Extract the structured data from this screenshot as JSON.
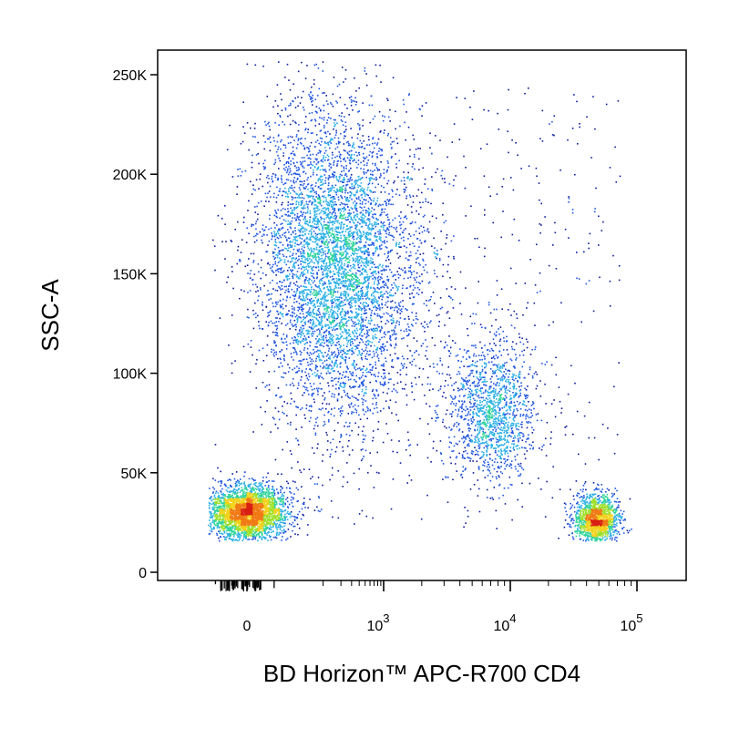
{
  "chart_data": {
    "type": "scatter",
    "title": "",
    "xlabel": "BD Horizon™ APC-R700  CD4",
    "ylabel": "SSC-A",
    "x_scale": "biexponential",
    "x_ticks": [
      {
        "value": 0,
        "label": "0",
        "exp": ""
      },
      {
        "value": 1000,
        "label": "10",
        "exp": "3"
      },
      {
        "value": 10000,
        "label": "10",
        "exp": "4"
      },
      {
        "value": 100000,
        "label": "10",
        "exp": "5"
      }
    ],
    "y_ticks": [
      {
        "value": 0,
        "label": "0"
      },
      {
        "value": 50000,
        "label": "50K"
      },
      {
        "value": 100000,
        "label": "100K"
      },
      {
        "value": 150000,
        "label": "150K"
      },
      {
        "value": 200000,
        "label": "200K"
      },
      {
        "value": 250000,
        "label": "250K"
      }
    ],
    "ylim": [
      0,
      262144
    ],
    "grid": false,
    "legend": "none",
    "color_scale": [
      "#0a1a9c",
      "#1f55e0",
      "#2bb0e6",
      "#30d49a",
      "#9ee02a",
      "#f2d21b",
      "#f07a14",
      "#d81e12"
    ],
    "populations": [
      {
        "name": "",
        "x_center": 150,
        "y_center": 155000,
        "density": "high",
        "points": 5200
      },
      {
        "name": "",
        "x_center": 0,
        "y_center": 30000,
        "density": "very high",
        "points": 3200
      },
      {
        "name": "",
        "x_center": 7000,
        "y_center": 82000,
        "density": "medium",
        "points": 1400
      },
      {
        "name": "",
        "x_center": 47000,
        "y_center": 27000,
        "density": "very high",
        "points": 1500
      },
      {
        "name": "",
        "x_center": 2000,
        "y_center": 140000,
        "density": "low",
        "points": 900
      }
    ]
  }
}
